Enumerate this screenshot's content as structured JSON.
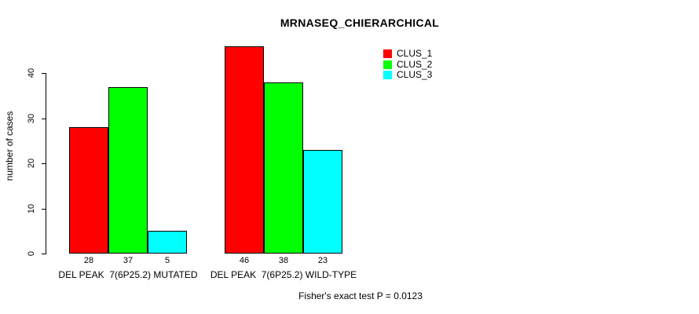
{
  "chart_data": {
    "type": "bar",
    "title": "MRNASEQ_CHIERARCHICAL",
    "categories": [
      "DEL PEAK  7(6P25.2) MUTATED",
      "DEL PEAK  7(6P25.2) WILD-TYPE"
    ],
    "series": [
      {
        "name": "CLUS_1",
        "color": "#ff0000",
        "values": [
          28,
          46
        ]
      },
      {
        "name": "CLUS_2",
        "color": "#00ff00",
        "values": [
          37,
          38
        ]
      },
      {
        "name": "CLUS_3",
        "color": "#00ffff",
        "values": [
          5,
          23
        ]
      }
    ],
    "xlabel": "",
    "ylabel": "number of cases",
    "ylim": [
      0,
      46
    ],
    "yticks": [
      0,
      10,
      20,
      30,
      40
    ],
    "bar_value_labels": true,
    "legend_position": "top-right",
    "grid": false
  },
  "footer_note": "Fisher's exact test P = 0.0123"
}
